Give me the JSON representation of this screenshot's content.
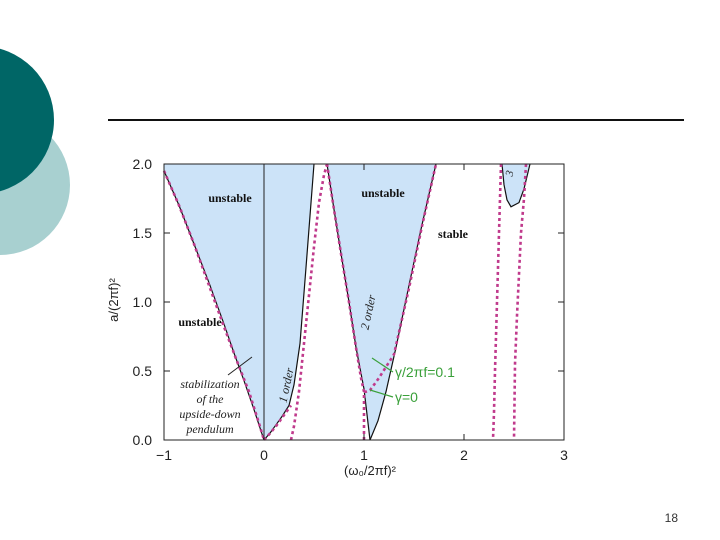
{
  "slide": {
    "number": "18",
    "colors": {
      "accent_dark": "#006666",
      "accent_light": "#a8d0d0",
      "rule": "#111111"
    }
  },
  "chart_data": {
    "type": "area",
    "title": "",
    "xlabel": "(ω₀/2πf)²",
    "ylabel": "a/(2πf)²",
    "xlim": [
      -1,
      3
    ],
    "ylim": [
      0,
      2
    ],
    "x_ticks": [
      "−1",
      "0",
      "1",
      "2",
      "3"
    ],
    "y_ticks": [
      "0.0",
      "0.5",
      "1.0",
      "1.5",
      "2.0"
    ],
    "grid": false,
    "colors": {
      "unstable_fill": "#cce3f8",
      "boundary_gamma0": "#111111",
      "boundary_damped": "#c03a8c",
      "annotation": "#3aa03a"
    },
    "series": [
      {
        "name": "γ = 0",
        "style": "solid",
        "curves": [
          {
            "x": [
              -1.0,
              -0.85,
              -0.7,
              -0.55,
              -0.4,
              -0.3,
              -0.2,
              -0.1,
              0.0
            ],
            "y": [
              1.95,
              1.7,
              1.42,
              1.14,
              0.84,
              0.63,
              0.43,
              0.22,
              0.0
            ]
          },
          {
            "x": [
              0.0,
              0.06,
              0.12,
              0.18,
              0.25,
              0.3,
              0.36,
              0.42,
              0.5
            ],
            "y": [
              0.0,
              0.05,
              0.11,
              0.17,
              0.25,
              0.4,
              0.7,
              1.25,
              2.0
            ]
          },
          {
            "x": [
              0.63,
              0.7,
              0.77,
              0.85,
              0.92,
              1.0,
              1.06
            ],
            "y": [
              2.0,
              1.67,
              1.35,
              1.0,
              0.67,
              0.37,
              0.0
            ]
          },
          {
            "x": [
              1.06,
              1.14,
              1.22,
              1.32,
              1.45,
              1.58,
              1.72
            ],
            "y": [
              0.0,
              0.14,
              0.35,
              0.67,
              1.12,
              1.56,
              2.0
            ]
          },
          {
            "x": [
              2.38,
              2.4,
              2.43,
              2.47,
              2.55,
              2.6,
              2.66
            ],
            "y": [
              2.0,
              1.85,
              1.74,
              1.69,
              1.72,
              1.82,
              2.0
            ]
          }
        ]
      },
      {
        "name": "γ/2πf = 0.1",
        "style": "dashed",
        "curves": [
          {
            "x": [
              -1.0,
              -0.85,
              -0.7,
              -0.55,
              -0.4,
              -0.27,
              -0.15,
              -0.05,
              0.0
            ],
            "y": [
              1.95,
              1.7,
              1.42,
              1.12,
              0.82,
              0.57,
              0.35,
              0.12,
              0.0
            ]
          },
          {
            "x": [
              0.27,
              0.3,
              0.35,
              0.4,
              0.45,
              0.5,
              0.55,
              0.6,
              0.63
            ],
            "y": [
              0.0,
              0.1,
              0.35,
              0.7,
              1.05,
              1.4,
              1.72,
              1.92,
              2.0
            ]
          },
          {
            "x": [
              0.0,
              0.05,
              0.12,
              0.18,
              0.24,
              0.27
            ],
            "y": [
              0.0,
              0.04,
              0.1,
              0.16,
              0.22,
              0.25
            ]
          },
          {
            "x": [
              0.63,
              0.7,
              0.77,
              0.85,
              0.92,
              0.97,
              1.0,
              1.0
            ],
            "y": [
              2.0,
              1.67,
              1.35,
              1.0,
              0.67,
              0.45,
              0.35,
              0.0
            ]
          },
          {
            "x": [
              1.0,
              1.02,
              1.06,
              1.15,
              1.3,
              1.45,
              1.58,
              1.72
            ],
            "y": [
              0.35,
              0.35,
              0.36,
              0.45,
              0.62,
              1.1,
              1.55,
              2.0
            ]
          },
          {
            "x": [
              2.37,
              2.35,
              2.33,
              2.31,
              2.3,
              2.29
            ],
            "y": [
              2.0,
              1.5,
              1.0,
              0.5,
              0.2,
              0.0
            ]
          },
          {
            "x": [
              2.62,
              2.6,
              2.57,
              2.55,
              2.53,
              2.51,
              2.5
            ],
            "y": [
              2.0,
              1.75,
              1.5,
              1.2,
              0.9,
              0.55,
              0.0
            ]
          }
        ]
      }
    ],
    "regions": [
      {
        "label": "unstable"
      },
      {
        "label": "unstable"
      },
      {
        "label": "stable"
      },
      {
        "label": "unstable"
      },
      {
        "label": "stabilization of the upside-down pendulum"
      }
    ],
    "region_labels": {
      "unstable_top_left": "unstable",
      "unstable_top_mid": "unstable",
      "stable": "stable",
      "unstable_lower_left": "unstable",
      "stabilization_1": "stabilization",
      "stabilization_2": "of the",
      "stabilization_3": "upside-down",
      "stabilization_4": "pendulum"
    },
    "order_labels": {
      "first": "1 order",
      "second": "2 order",
      "third": "3"
    },
    "legend_labels": {
      "damped": "γ/2πf=0.1",
      "undamped": "γ=0"
    }
  }
}
